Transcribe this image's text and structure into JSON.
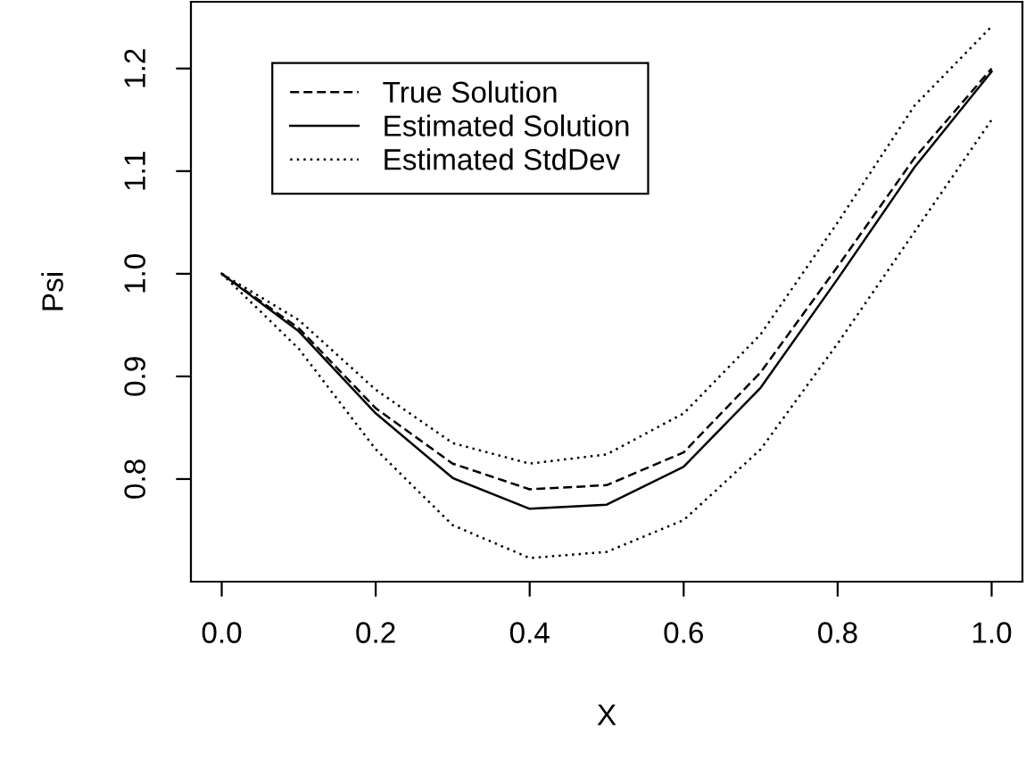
{
  "chart_data": {
    "type": "line",
    "xlabel": "X",
    "ylabel": "Psi",
    "x": [
      0,
      0.1,
      0.2,
      0.3,
      0.4,
      0.5,
      0.6,
      0.7,
      0.8,
      0.9,
      1.0
    ],
    "series": [
      {
        "name": "True Solution",
        "color": "#000000",
        "line_style": "dashed",
        "values": [
          1.0,
          0.947,
          0.869,
          0.815,
          0.79,
          0.794,
          0.826,
          0.904,
          1.007,
          1.113,
          1.2
        ]
      },
      {
        "name": "Estimated Solution",
        "color": "#000000",
        "line_style": "solid",
        "values": [
          1.0,
          0.944,
          0.864,
          0.801,
          0.771,
          0.775,
          0.812,
          0.889,
          0.995,
          1.104,
          1.197
        ]
      },
      {
        "name": "Estimated StdDev",
        "color": "#000000",
        "line_style": "dotted",
        "values": [
          1.0,
          0.955,
          0.887,
          0.835,
          0.815,
          0.824,
          0.864,
          0.941,
          1.05,
          1.164,
          1.241
        ]
      },
      {
        "color": "#000000",
        "line_style": "dotted",
        "values": [
          1.0,
          0.927,
          0.829,
          0.755,
          0.723,
          0.729,
          0.76,
          0.829,
          0.932,
          1.041,
          1.15
        ]
      }
    ],
    "xlim": [
      -0.04,
      1.04
    ],
    "ylim": [
      0.7,
      1.265
    ],
    "xticks": [
      {
        "value": 0,
        "label": "0.0"
      },
      0.2,
      0.4,
      0.6,
      0.8,
      {
        "value": 1,
        "label": "1.0"
      }
    ],
    "yticks": [
      0.8,
      0.9,
      {
        "value": 1,
        "label": "1.0"
      },
      1.1,
      1.2
    ],
    "grid": false,
    "legend": "top left"
  }
}
